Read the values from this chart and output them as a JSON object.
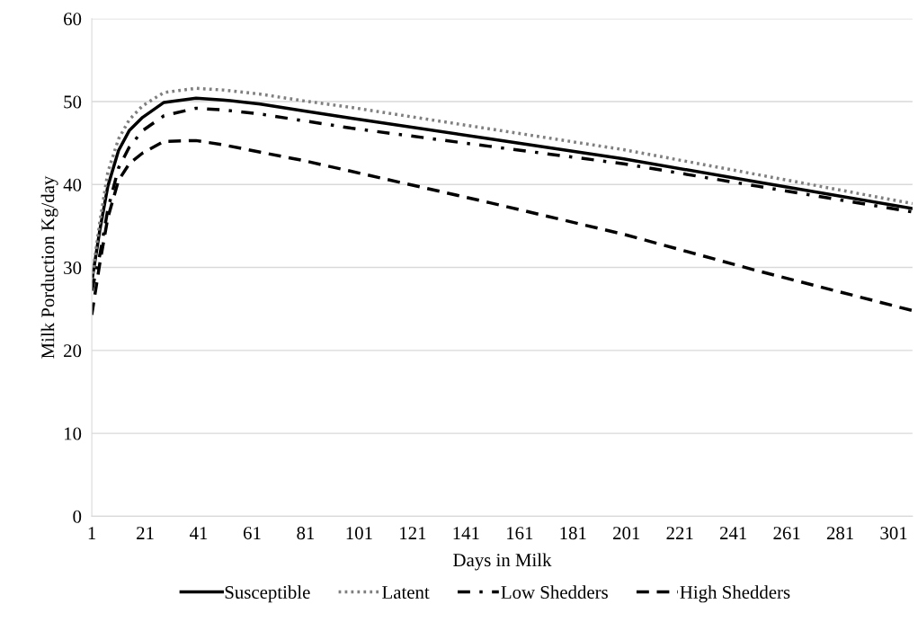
{
  "chart_data": {
    "type": "line",
    "xlabel": "Days in Milk",
    "ylabel": "Milk Porduction Kg/day",
    "xlim": [
      1,
      308
    ],
    "xticks": [
      1,
      21,
      41,
      61,
      81,
      101,
      121,
      141,
      161,
      181,
      201,
      221,
      241,
      261,
      281,
      301
    ],
    "ylim": [
      0,
      60
    ],
    "yticks": [
      0,
      10,
      20,
      30,
      40,
      50,
      60
    ],
    "grid": "y",
    "legend": "bottom",
    "marker": "none",
    "series": [
      {
        "name": "Susceptible",
        "color": "#000000",
        "line_style": "solid",
        "x": [
          1,
          4,
          7,
          11,
          15,
          20,
          28,
          40,
          50,
          64,
          80,
          98,
          150,
          200,
          250,
          308
        ],
        "values": [
          28.3,
          34.5,
          39.8,
          44.1,
          46.5,
          48.1,
          49.9,
          50.4,
          50.2,
          49.7,
          48.9,
          48.0,
          45.5,
          43.1,
          40.3,
          37.1
        ]
      },
      {
        "name": "Latent",
        "color": "#808080",
        "line_style": "dotted",
        "x": [
          1,
          4,
          7,
          11,
          15,
          20,
          28,
          40,
          50,
          64,
          80,
          98,
          150,
          200,
          250,
          308
        ],
        "values": [
          28.5,
          35.5,
          41.5,
          45.5,
          47.8,
          49.5,
          51.1,
          51.6,
          51.4,
          50.9,
          50.1,
          49.3,
          46.7,
          44.2,
          41.2,
          37.7
        ]
      },
      {
        "name": "Low Shedders",
        "color": "#000000",
        "line_style": "dashdot",
        "x": [
          1,
          4,
          7,
          11,
          15,
          20,
          28,
          40,
          50,
          64,
          80,
          98,
          150,
          200,
          250,
          308
        ],
        "values": [
          27.2,
          31.5,
          37.0,
          42.0,
          44.5,
          46.5,
          48.3,
          49.2,
          49.0,
          48.5,
          47.7,
          46.8,
          44.6,
          42.5,
          39.8,
          36.7
        ]
      },
      {
        "name": "High Shedders",
        "color": "#000000",
        "line_style": "dashed",
        "x": [
          1,
          4,
          7,
          11,
          15,
          20,
          28,
          40,
          50,
          64,
          80,
          98,
          150,
          200,
          250,
          308
        ],
        "values": [
          24.3,
          30.5,
          36.0,
          40.5,
          42.5,
          43.8,
          45.2,
          45.3,
          44.8,
          43.9,
          42.9,
          41.6,
          37.8,
          34.0,
          29.6,
          24.8
        ]
      }
    ]
  }
}
